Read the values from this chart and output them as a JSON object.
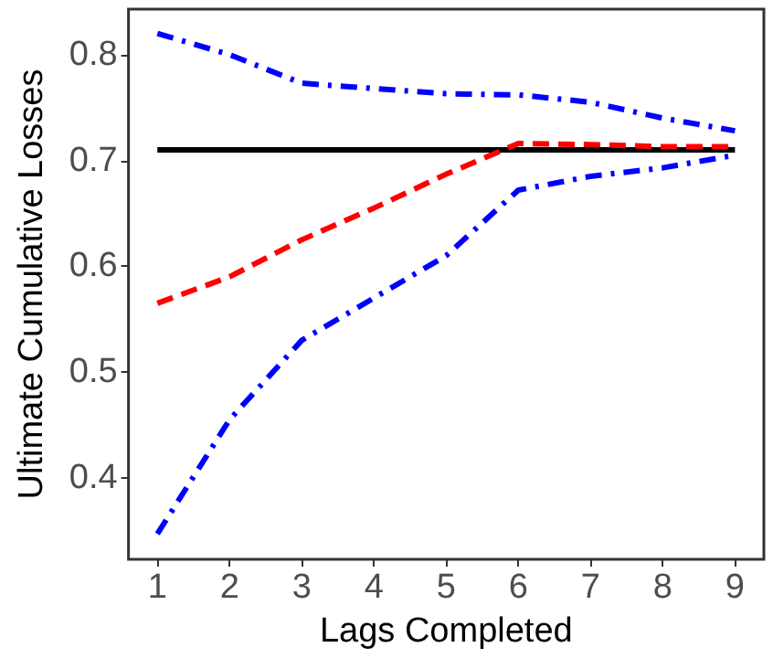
{
  "chart_data": {
    "type": "line",
    "xlabel": "Lags Completed",
    "ylabel": "Ultimate Cumulative Losses",
    "x": [
      1,
      2,
      3,
      4,
      5,
      6,
      7,
      8,
      9
    ],
    "series": [
      {
        "color": "#0000ff",
        "line_style": "dashdot",
        "values": [
          0.82,
          0.8,
          0.773,
          0.768,
          0.763,
          0.762,
          0.755,
          0.74,
          0.728
        ]
      },
      {
        "color": "#0000ff",
        "line_style": "dashdot",
        "values": [
          0.347,
          0.455,
          0.53,
          0.57,
          0.61,
          0.672,
          0.685,
          0.693,
          0.705
        ]
      },
      {
        "color": "#000000",
        "line_style": "solid",
        "values": [
          0.71,
          0.71,
          0.71,
          0.71,
          0.71,
          0.71,
          0.71,
          0.71,
          0.71
        ]
      },
      {
        "color": "#ff0000",
        "line_style": "dashed",
        "values": [
          0.565,
          0.59,
          0.625,
          0.655,
          0.687,
          0.716,
          0.715,
          0.713,
          0.713
        ]
      }
    ],
    "xlim": [
      0.6,
      9.4
    ],
    "xticks": [
      1,
      2,
      3,
      4,
      5,
      6,
      7,
      8,
      9
    ],
    "ylim": [
      0.323,
      0.843
    ],
    "yticks": [
      0.4,
      0.5,
      0.6,
      0.7,
      0.8
    ],
    "grid": false,
    "marker": "none"
  }
}
